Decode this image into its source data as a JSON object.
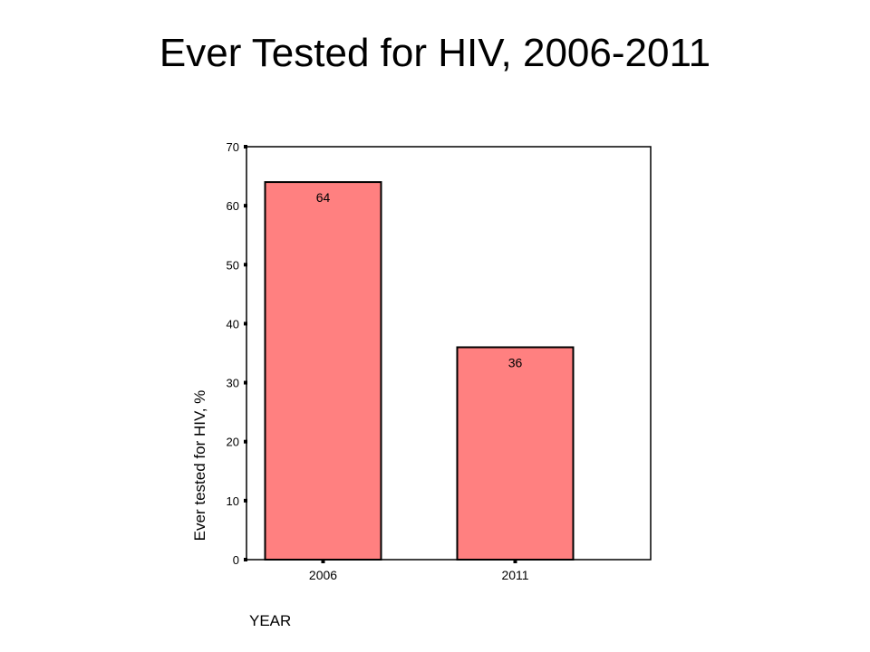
{
  "title": "Ever Tested for HIV, 2006-2011",
  "chart_data": {
    "type": "bar",
    "title": "Ever Tested for HIV, 2006-2011",
    "xlabel": "YEAR",
    "ylabel": "Ever tested for HIV, %",
    "categories": [
      "2006",
      "2011"
    ],
    "values": [
      64,
      36
    ],
    "data_labels": [
      "64",
      "36"
    ],
    "yticks": [
      0,
      10,
      20,
      30,
      40,
      50,
      60,
      70
    ],
    "ylim": [
      0,
      70
    ],
    "grid": false,
    "legend": "none",
    "bar_color": "#ff8080",
    "edge_color": "#000000"
  }
}
